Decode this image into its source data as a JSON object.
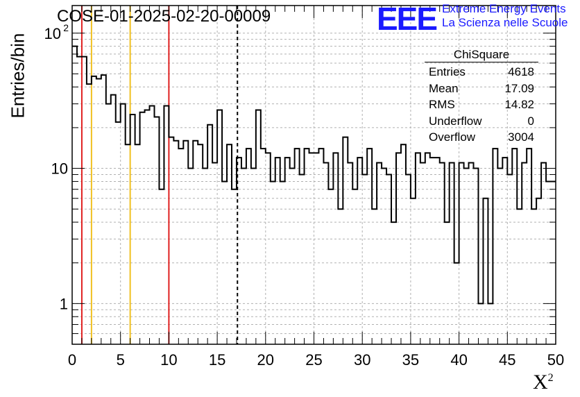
{
  "header": {
    "title": "COSE-01-2025-02-20-00009",
    "logo_text": "EEE",
    "logo_line1": "Extreme Energy Events",
    "logo_line2": "La Scienza nelle Scuole"
  },
  "stats_box": {
    "title": "ChiSquare",
    "rows": [
      {
        "label": "Entries",
        "value": "4618"
      },
      {
        "label": "Mean",
        "value": "17.09"
      },
      {
        "label": "RMS",
        "value": "14.82"
      },
      {
        "label": "Underflow",
        "value": "0"
      },
      {
        "label": "Overflow",
        "value": "3004"
      }
    ]
  },
  "chart_data": {
    "type": "histogram",
    "title": "COSE-01-2025-02-20-00009",
    "xlabel": "X",
    "xlabel_superscript": "2",
    "ylabel": "Entries/bin",
    "xlim": [
      0,
      50
    ],
    "ylim": [
      0.5,
      160
    ],
    "yscale": "log",
    "grid": true,
    "bin_width": 0.5,
    "x_ticks": [
      "0",
      "5",
      "10",
      "15",
      "20",
      "25",
      "30",
      "35",
      "40",
      "45",
      "50"
    ],
    "y_ticks": [
      {
        "value": 1,
        "label": "1"
      },
      {
        "value": 10,
        "label": "10"
      },
      {
        "value": 100,
        "label": "10",
        "exponent": "2"
      }
    ],
    "values": [
      80,
      67,
      67,
      42,
      48,
      46,
      49,
      30,
      35,
      22,
      30,
      15,
      25,
      15,
      26,
      27,
      29,
      24,
      7,
      29,
      17,
      16,
      14,
      16,
      10,
      16,
      15,
      10,
      21,
      11,
      27,
      8,
      15,
      7,
      12,
      10,
      14,
      10,
      27,
      14,
      13,
      8,
      12,
      8,
      12,
      10,
      14,
      9,
      14,
      13,
      13,
      14,
      11,
      7,
      13,
      5,
      17,
      11,
      7,
      12,
      9,
      14,
      5,
      11,
      10,
      9,
      4,
      13,
      15,
      9,
      6,
      13,
      11,
      13,
      12,
      12,
      11,
      4,
      11,
      2,
      11,
      10,
      11,
      10,
      1,
      6,
      1,
      14,
      10,
      12,
      9,
      14,
      5,
      11,
      14,
      5,
      6,
      11,
      8,
      8
    ],
    "vertical_lines": [
      {
        "x": 1,
        "color": "#e02020",
        "style": "solid"
      },
      {
        "x": 2,
        "color": "#f0c020",
        "style": "solid"
      },
      {
        "x": 6,
        "color": "#f0c020",
        "style": "solid"
      },
      {
        "x": 10,
        "color": "#e02020",
        "style": "solid"
      },
      {
        "x": 17.09,
        "color": "#000000",
        "style": "dashed"
      }
    ]
  }
}
